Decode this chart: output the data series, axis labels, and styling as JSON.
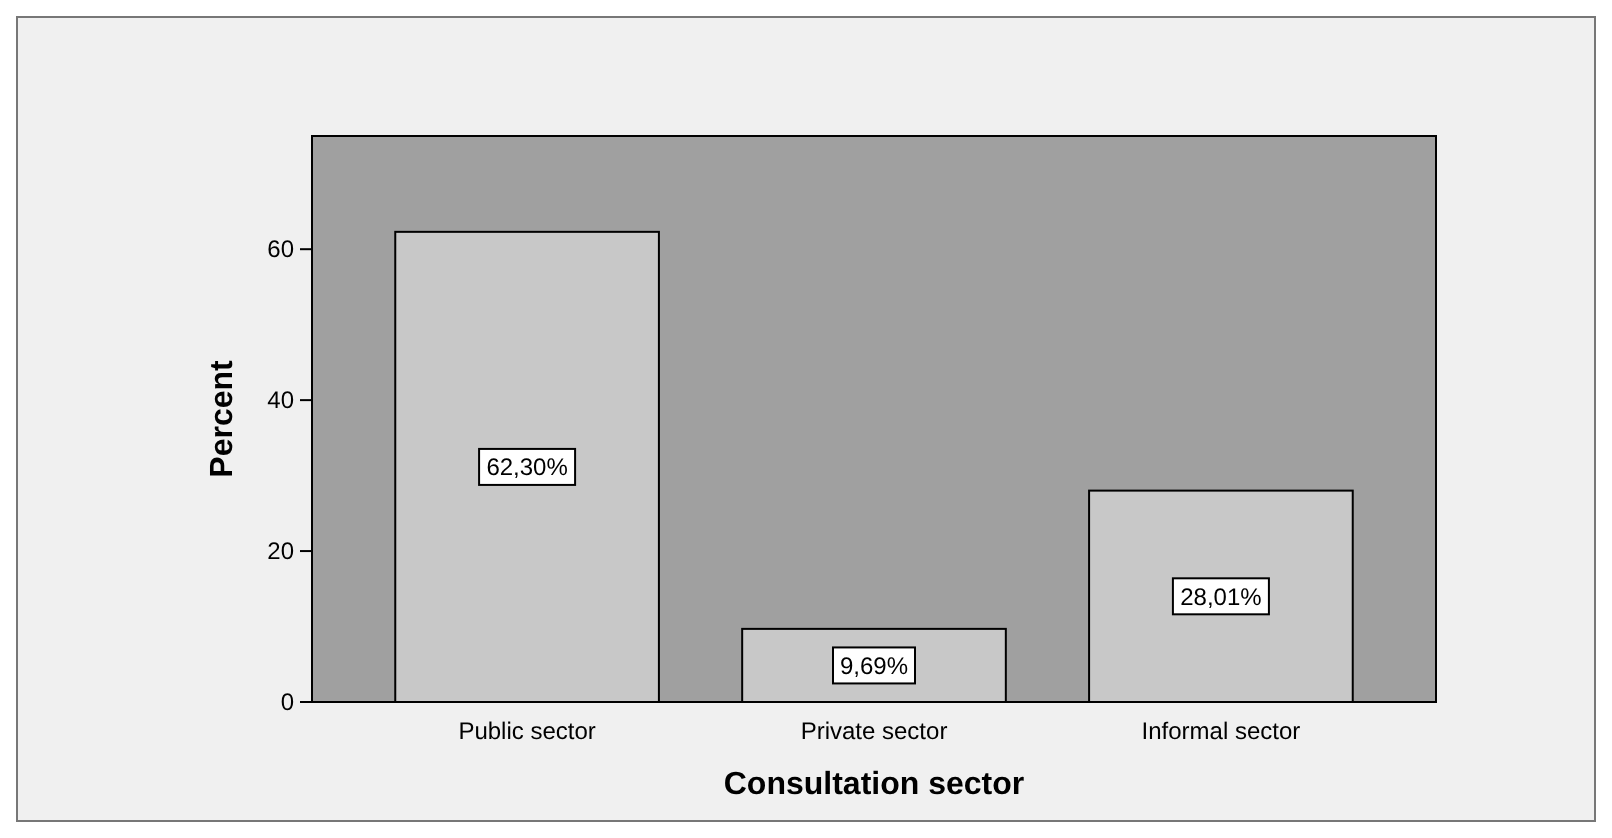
{
  "chart_data": {
    "type": "bar",
    "xlabel": "Consultation sector",
    "ylabel": "Percent",
    "categories": [
      "Public sector",
      "Private sector",
      "Informal sector"
    ],
    "values": [
      62.3,
      9.69,
      28.01
    ],
    "value_labels": [
      "62,30%",
      "9,69%",
      "28,01%"
    ],
    "color": "#c8c8c8",
    "ylim": [
      0,
      75
    ],
    "yticks": [
      0,
      20,
      40,
      60
    ],
    "grid": false
  }
}
